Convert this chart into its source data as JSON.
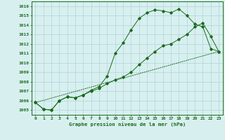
{
  "title": "Graphe pression niveau de la mer (hPa)",
  "bg_color": "#d8eff0",
  "grid_color": "#afd4d5",
  "line_color": "#1a6b1a",
  "x_labels": [
    "0",
    "1",
    "2",
    "3",
    "4",
    "5",
    "6",
    "7",
    "8",
    "9",
    "10",
    "11",
    "12",
    "13",
    "14",
    "15",
    "16",
    "17",
    "18",
    "19",
    "20",
    "21",
    "22",
    "23"
  ],
  "ylim": [
    1004.5,
    1016.5
  ],
  "xlim": [
    -0.5,
    23.5
  ],
  "yticks": [
    1005,
    1006,
    1007,
    1008,
    1009,
    1010,
    1011,
    1012,
    1013,
    1014,
    1015,
    1016
  ],
  "line1_x": [
    0,
    1,
    2,
    3,
    4,
    5,
    6,
    7,
    8,
    9,
    10,
    11,
    12,
    13,
    14,
    15,
    16,
    17,
    18,
    19,
    20,
    21,
    22,
    23
  ],
  "line1_y": [
    1005.8,
    1005.1,
    1005.0,
    1006.0,
    1006.4,
    1006.3,
    1006.6,
    1007.1,
    1007.5,
    1008.6,
    1011.0,
    1012.1,
    1013.5,
    1014.7,
    1015.3,
    1015.6,
    1015.5,
    1015.3,
    1015.7,
    1015.0,
    1014.1,
    1013.8,
    1011.5,
    1011.2
  ],
  "line2_x": [
    0,
    1,
    2,
    3,
    4,
    5,
    6,
    7,
    8,
    9,
    10,
    11,
    12,
    13,
    14,
    15,
    16,
    17,
    18,
    19,
    20,
    21,
    22,
    23
  ],
  "line2_y": [
    1005.8,
    1005.1,
    1005.0,
    1006.0,
    1006.4,
    1006.3,
    1006.6,
    1007.0,
    1007.3,
    1007.8,
    1008.2,
    1008.5,
    1009.0,
    1009.8,
    1010.5,
    1011.2,
    1011.8,
    1012.0,
    1012.5,
    1013.0,
    1013.8,
    1014.2,
    1012.8,
    1011.2
  ],
  "line3_x": [
    0,
    23
  ],
  "line3_y": [
    1005.8,
    1011.2
  ],
  "marker_size": 1.8,
  "line_width": 0.7
}
